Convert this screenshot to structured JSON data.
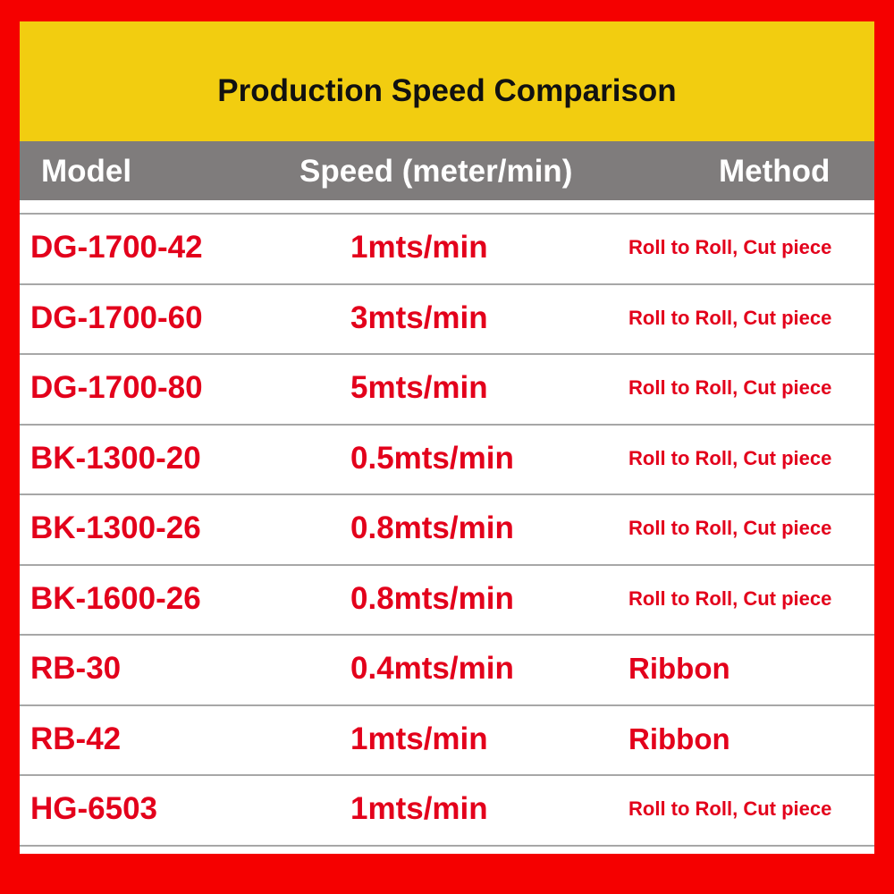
{
  "header": {
    "title": "Production Speed Comparison"
  },
  "table": {
    "columns": [
      "Model",
      "Speed (meter/min)",
      "Method"
    ],
    "rows": [
      [
        "DG-1700-42",
        "1mts/min",
        "Roll to Roll, Cut piece"
      ],
      [
        "DG-1700-60",
        "3mts/min",
        "Roll to Roll, Cut piece"
      ],
      [
        "DG-1700-80",
        "5mts/min",
        "Roll to Roll, Cut piece"
      ],
      [
        "BK-1300-20",
        "0.5mts/min",
        "Roll to Roll, Cut piece"
      ],
      [
        "BK-1300-26",
        "0.8mts/min",
        "Roll to Roll, Cut piece"
      ],
      [
        "BK-1600-26",
        "0.8mts/min",
        "Roll to Roll, Cut piece"
      ],
      [
        "RB-30",
        "0.4mts/min",
        "Ribbon"
      ],
      [
        "RB-42",
        "1mts/min",
        "Ribbon"
      ],
      [
        "HG-6503",
        "1mts/min",
        "Roll to Roll, Cut piece"
      ]
    ]
  }
}
